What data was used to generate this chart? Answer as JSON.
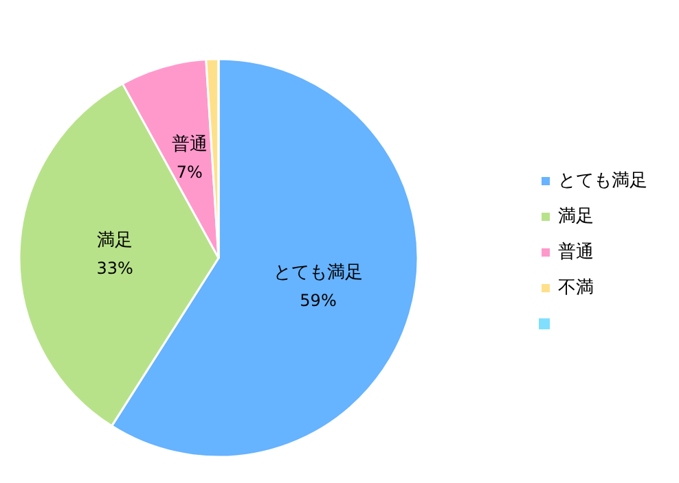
{
  "chart_data": {
    "type": "pie",
    "categories": [
      "とても満足",
      "満足",
      "普通",
      "不満",
      null
    ],
    "values": [
      59,
      33,
      7,
      1,
      0
    ],
    "value_labels": [
      "59%",
      "33%",
      "7%",
      null,
      null
    ],
    "colors": [
      "#66b3ff",
      "#b8e28a",
      "#ff99cc",
      "#ffe08a",
      "#80dfff"
    ],
    "legend": "right"
  }
}
